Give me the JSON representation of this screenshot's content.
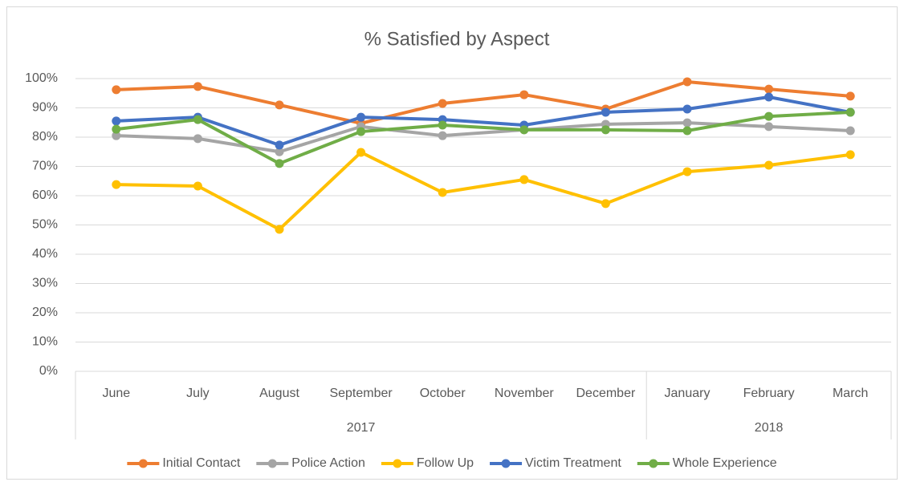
{
  "chart_data": {
    "type": "line",
    "title": "% Satisfied by Aspect",
    "category_groups": [
      {
        "label": "2017",
        "categories": [
          "June",
          "July",
          "August",
          "September",
          "October",
          "November",
          "December"
        ]
      },
      {
        "label": "2018",
        "categories": [
          "January",
          "February",
          "March"
        ]
      }
    ],
    "series": [
      {
        "name": "Initial Contact",
        "color": "#ed7d31",
        "values": [
          96.2,
          97.3,
          91,
          84.7,
          91.5,
          94.5,
          89.6,
          98.9,
          96.4,
          94
        ]
      },
      {
        "name": "Police Action",
        "color": "#a5a5a5",
        "values": [
          80.5,
          79.5,
          75,
          83.6,
          80.5,
          82.5,
          84.4,
          84.9,
          83.6,
          82.2
        ]
      },
      {
        "name": "Follow Up",
        "color": "#ffc000",
        "values": [
          63.8,
          63.3,
          48.5,
          74.8,
          61.1,
          65.5,
          57.3,
          68.2,
          70.4,
          74
        ]
      },
      {
        "name": "Victim Treatment",
        "color": "#4472c4",
        "values": [
          85.5,
          86.8,
          77.3,
          86.8,
          86,
          84.1,
          88.5,
          89.6,
          93.7,
          88.5
        ]
      },
      {
        "name": "Whole Experience",
        "color": "#70ad47",
        "values": [
          82.7,
          86,
          71,
          81.9,
          84.1,
          82.5,
          82.5,
          82.2,
          87.1,
          88.5
        ]
      }
    ],
    "ylim": [
      0,
      100
    ],
    "yticks": [
      {
        "value": 0,
        "label": "0%"
      },
      {
        "value": 10,
        "label": "10%"
      },
      {
        "value": 20,
        "label": "20%"
      },
      {
        "value": 30,
        "label": "30%"
      },
      {
        "value": 40,
        "label": "40%"
      },
      {
        "value": 50,
        "label": "50%"
      },
      {
        "value": 60,
        "label": "60%"
      },
      {
        "value": 70,
        "label": "70%"
      },
      {
        "value": 80,
        "label": "80%"
      },
      {
        "value": 90,
        "label": "90%"
      },
      {
        "value": 100,
        "label": "100%"
      }
    ],
    "grid": true,
    "legend": "bottom"
  }
}
